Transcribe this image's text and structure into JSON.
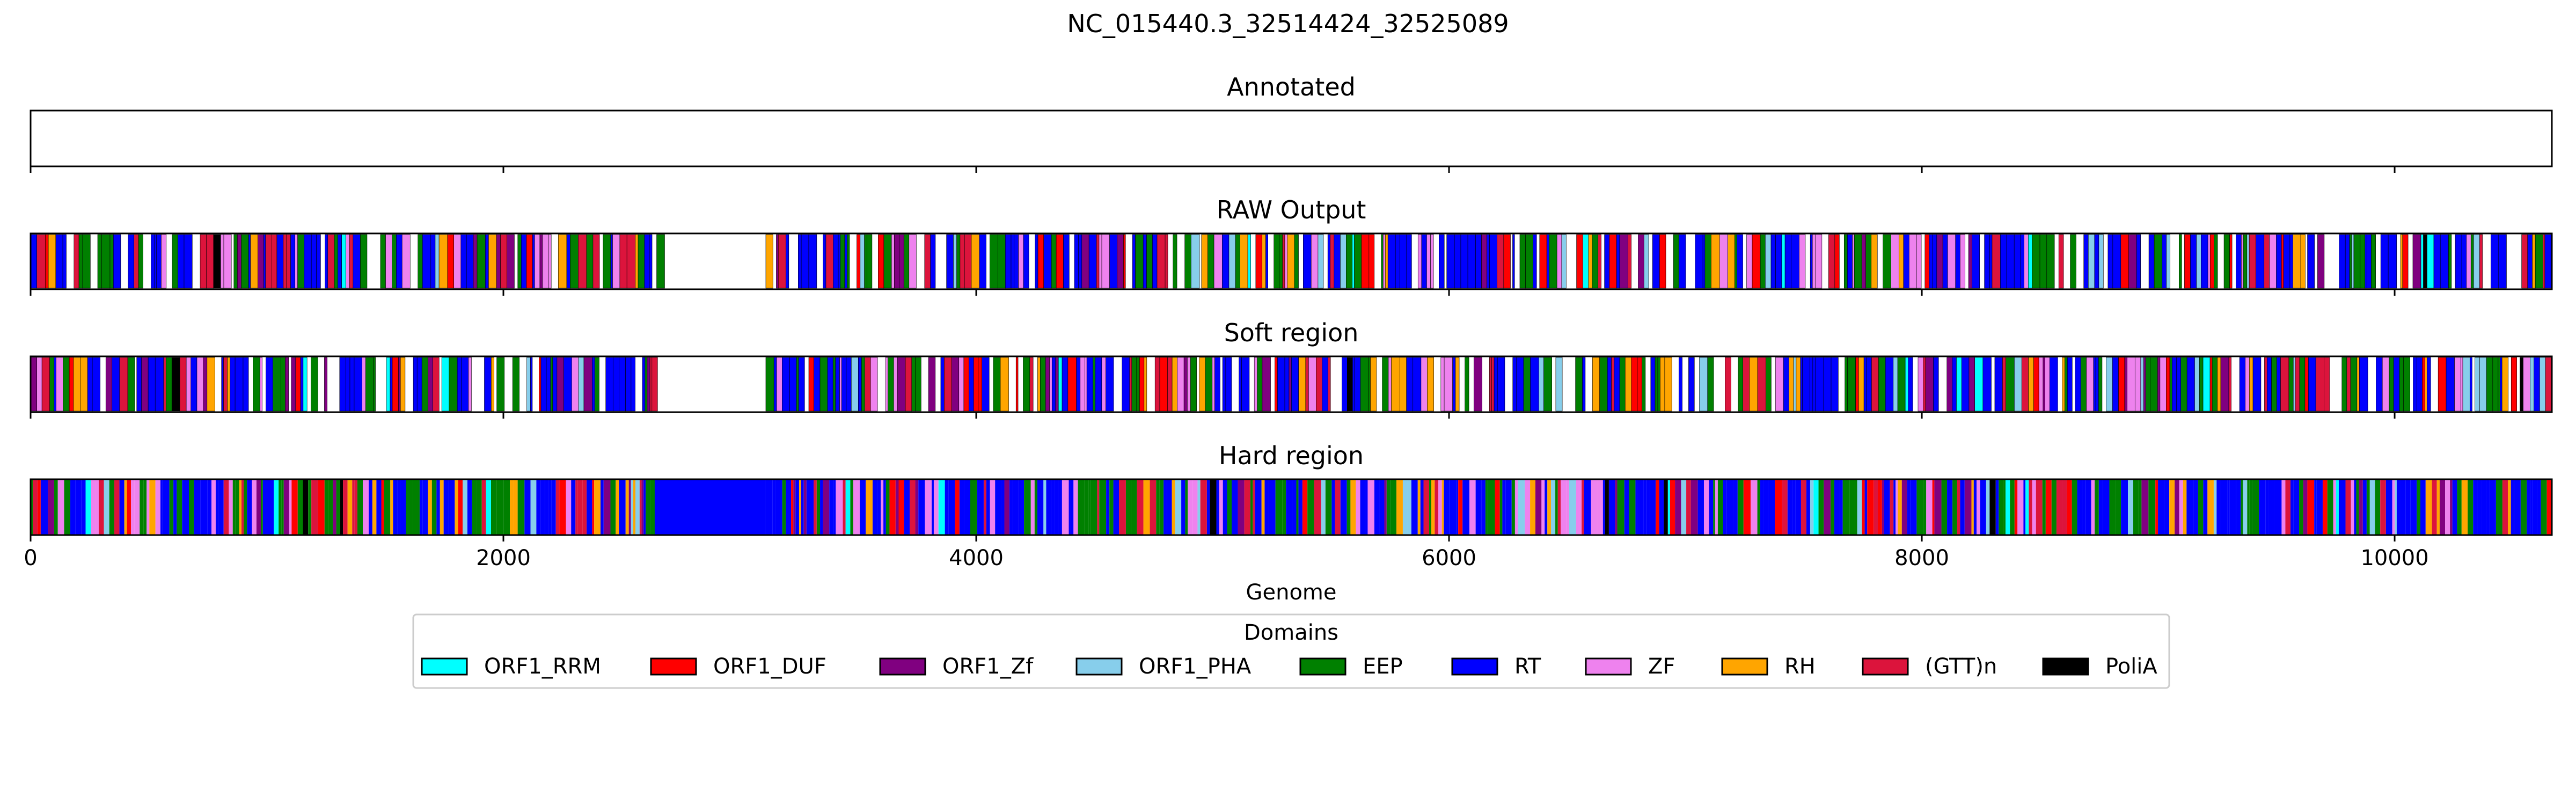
{
  "chart_data": {
    "type": "genome-track",
    "title": "NC_015440.3_32514424_32525089",
    "xlabel": "Genome",
    "xlim": [
      0,
      10665
    ],
    "xticks": [
      0,
      2000,
      4000,
      6000,
      8000,
      10000
    ],
    "xtick_labels": [
      "0",
      "2000",
      "4000",
      "6000",
      "8000",
      "10000"
    ],
    "tracks": [
      {
        "name": "Annotated",
        "empty": true,
        "gap": null,
        "gap_fill": null
      },
      {
        "name": "RAW Output",
        "empty": false,
        "gap": [
          2650,
          3110
        ],
        "gap_fill": null
      },
      {
        "name": "Soft region",
        "empty": false,
        "gap": [
          2650,
          3110
        ],
        "gap_fill": null
      },
      {
        "name": "Hard region",
        "empty": false,
        "gap": [
          2640,
          3110
        ],
        "gap_fill": "RT"
      }
    ],
    "legend": {
      "title": "Domains",
      "placement": "bottom-center",
      "items": [
        {
          "name": "ORF1_RRM",
          "color": "#00ffff"
        },
        {
          "name": "ORF1_DUF",
          "color": "#ff0000"
        },
        {
          "name": "ORF1_Zf",
          "color": "#800080"
        },
        {
          "name": "ORF1_PHA",
          "color": "#87ceeb"
        },
        {
          "name": "EEP",
          "color": "#008000"
        },
        {
          "name": "RT",
          "color": "#0000ff"
        },
        {
          "name": "ZF",
          "color": "#ee82ee"
        },
        {
          "name": "RH",
          "color": "#ffa500"
        },
        {
          "name": "(GTT)n",
          "color": "#dc143c"
        },
        {
          "name": "PoliA",
          "color": "#000000"
        }
      ]
    }
  }
}
